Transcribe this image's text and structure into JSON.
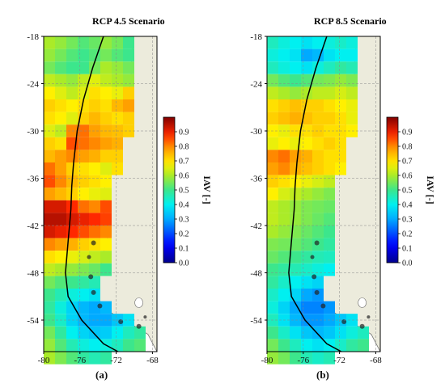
{
  "figure": {
    "panels": [
      {
        "id": "a",
        "title": "RCP 4.5 Scenario",
        "sublabel": "(a)",
        "colorbar_label": "IAV [-]",
        "grid": {
          "lon_start": -80,
          "lon_step": 1.25,
          "lat_start": -18,
          "lat_step": -1.6,
          "rows": [
            [
              0.6,
              0.58,
              0.55,
              0.52,
              0.54,
              0.58,
              0.55,
              0.5,
              0.48
            ],
            [
              0.58,
              0.55,
              0.52,
              0.5,
              0.52,
              0.55,
              0.52,
              0.5,
              0.48
            ],
            [
              0.55,
              0.52,
              0.5,
              0.5,
              0.55,
              0.6,
              0.58,
              0.55,
              0.52
            ],
            [
              0.62,
              0.6,
              0.58,
              0.62,
              0.65,
              0.62,
              0.6,
              0.58,
              0.55
            ],
            [
              0.68,
              0.65,
              0.62,
              0.65,
              0.7,
              0.68,
              0.66,
              0.72,
              0.68
            ],
            [
              0.72,
              0.7,
              0.68,
              0.7,
              0.72,
              0.7,
              0.75,
              0.78,
              0.7
            ],
            [
              0.7,
              0.68,
              0.65,
              0.72,
              0.75,
              0.72,
              0.7,
              0.72,
              0.68
            ],
            [
              0.65,
              0.62,
              0.8,
              0.82,
              0.78,
              0.75,
              0.74,
              0.72,
              0.7
            ],
            [
              0.72,
              0.7,
              0.85,
              0.82,
              0.8,
              0.78,
              0.76,
              0.88,
              0.82
            ],
            [
              0.75,
              0.78,
              0.8,
              0.78,
              0.76,
              0.72,
              0.72,
              0.9,
              0.78
            ],
            [
              0.82,
              0.78,
              0.72,
              0.7,
              0.68,
              0.65,
              0.7,
              0.72,
              0.7
            ],
            [
              0.85,
              0.8,
              0.75,
              0.72,
              0.7,
              0.68,
              0.68,
              0.68,
              0.66
            ],
            [
              0.78,
              0.75,
              0.72,
              0.68,
              0.66,
              0.65,
              0.7,
              0.68,
              0.66
            ],
            [
              0.92,
              0.92,
              0.88,
              0.82,
              0.8,
              0.85,
              0.78,
              0.72,
              0.7
            ],
            [
              0.95,
              0.95,
              0.92,
              0.9,
              0.88,
              0.86,
              0.84,
              0.8,
              0.75
            ],
            [
              0.92,
              0.9,
              0.88,
              0.85,
              0.82,
              0.8,
              0.76,
              0.74,
              0.72
            ],
            [
              0.8,
              0.78,
              0.76,
              0.72,
              0.7,
              0.68,
              0.66,
              0.64,
              0.62
            ],
            [
              0.7,
              0.68,
              0.66,
              0.64,
              0.62,
              0.6,
              0.58,
              0.56,
              0.55
            ],
            [
              0.62,
              0.6,
              0.58,
              0.56,
              0.54,
              0.5,
              0.48,
              0.46,
              0.45
            ],
            [
              0.55,
              0.52,
              0.5,
              0.48,
              0.46,
              0.44,
              0.42,
              0.4,
              0.4
            ],
            [
              0.5,
              0.46,
              0.42,
              0.4,
              0.38,
              0.36,
              0.35,
              0.36,
              0.38
            ],
            [
              0.48,
              0.42,
              0.36,
              0.32,
              0.3,
              0.32,
              0.34,
              0.38,
              0.4
            ],
            [
              0.5,
              0.44,
              0.36,
              0.32,
              0.3,
              0.3,
              0.34,
              0.38,
              0.42
            ],
            [
              0.55,
              0.48,
              0.4,
              0.36,
              0.34,
              0.35,
              0.4,
              0.45,
              0.48
            ],
            [
              0.58,
              0.52,
              0.46,
              0.42,
              0.4,
              0.42,
              0.45,
              0.5,
              0.52
            ],
            [
              0.6,
              0.56,
              0.52,
              0.48,
              0.46,
              0.48,
              0.5,
              0.52,
              0.55
            ]
          ]
        }
      },
      {
        "id": "b",
        "title": "RCP 8.5 Scenario",
        "sublabel": "(b)",
        "colorbar_label": "IAV [-]",
        "grid": {
          "lon_start": -80,
          "lon_step": 1.25,
          "lat_start": -18,
          "lat_step": -1.6,
          "rows": [
            [
              0.45,
              0.42,
              0.4,
              0.38,
              0.4,
              0.42,
              0.44,
              0.42,
              0.4
            ],
            [
              0.42,
              0.4,
              0.38,
              0.3,
              0.32,
              0.38,
              0.4,
              0.4,
              0.4
            ],
            [
              0.45,
              0.42,
              0.4,
              0.38,
              0.42,
              0.45,
              0.48,
              0.46,
              0.44
            ],
            [
              0.55,
              0.52,
              0.5,
              0.52,
              0.55,
              0.56,
              0.58,
              0.56,
              0.54
            ],
            [
              0.62,
              0.6,
              0.58,
              0.6,
              0.62,
              0.62,
              0.64,
              0.62,
              0.6
            ],
            [
              0.7,
              0.72,
              0.74,
              0.72,
              0.72,
              0.7,
              0.68,
              0.66,
              0.64
            ],
            [
              0.72,
              0.74,
              0.76,
              0.74,
              0.72,
              0.72,
              0.7,
              0.66,
              0.64
            ],
            [
              0.68,
              0.66,
              0.7,
              0.7,
              0.72,
              0.7,
              0.7,
              0.68,
              0.66
            ],
            [
              0.66,
              0.68,
              0.66,
              0.68,
              0.7,
              0.72,
              0.7,
              0.7,
              0.68
            ],
            [
              0.8,
              0.82,
              0.78,
              0.76,
              0.72,
              0.7,
              0.7,
              0.72,
              0.7
            ],
            [
              0.78,
              0.8,
              0.76,
              0.74,
              0.72,
              0.7,
              0.68,
              0.66,
              0.64
            ],
            [
              0.72,
              0.7,
              0.68,
              0.66,
              0.64,
              0.62,
              0.62,
              0.6,
              0.58
            ],
            [
              0.68,
              0.64,
              0.62,
              0.6,
              0.58,
              0.56,
              0.55,
              0.55,
              0.54
            ],
            [
              0.62,
              0.6,
              0.58,
              0.56,
              0.55,
              0.54,
              0.52,
              0.5,
              0.5
            ],
            [
              0.62,
              0.6,
              0.58,
              0.56,
              0.54,
              0.52,
              0.5,
              0.5,
              0.48
            ],
            [
              0.6,
              0.58,
              0.56,
              0.54,
              0.52,
              0.5,
              0.5,
              0.48,
              0.48
            ],
            [
              0.56,
              0.55,
              0.54,
              0.52,
              0.5,
              0.48,
              0.48,
              0.46,
              0.46
            ],
            [
              0.54,
              0.52,
              0.5,
              0.48,
              0.46,
              0.45,
              0.44,
              0.44,
              0.44
            ],
            [
              0.5,
              0.48,
              0.46,
              0.44,
              0.42,
              0.4,
              0.4,
              0.4,
              0.4
            ],
            [
              0.48,
              0.44,
              0.4,
              0.38,
              0.36,
              0.34,
              0.34,
              0.36,
              0.38
            ],
            [
              0.44,
              0.4,
              0.36,
              0.3,
              0.28,
              0.3,
              0.32,
              0.34,
              0.36
            ],
            [
              0.42,
              0.36,
              0.3,
              0.26,
              0.26,
              0.28,
              0.3,
              0.34,
              0.36
            ],
            [
              0.45,
              0.38,
              0.32,
              0.28,
              0.28,
              0.3,
              0.34,
              0.38,
              0.4
            ],
            [
              0.5,
              0.44,
              0.38,
              0.34,
              0.32,
              0.34,
              0.38,
              0.42,
              0.45
            ],
            [
              0.55,
              0.5,
              0.45,
              0.4,
              0.38,
              0.4,
              0.44,
              0.48,
              0.5
            ],
            [
              0.58,
              0.55,
              0.5,
              0.46,
              0.44,
              0.46,
              0.48,
              0.5,
              0.52
            ]
          ]
        }
      }
    ],
    "y_ticks": [
      "-18",
      "-24",
      "-30",
      "-36",
      "-42",
      "-48",
      "-54"
    ],
    "x_ticks": [
      "-80",
      "-76",
      "-72",
      "-68"
    ],
    "colorbar_ticks": [
      "0.9",
      "0.8",
      "0.7",
      "0.6",
      "0.5",
      "0.4",
      "0.3",
      "0.2",
      "0.1",
      "0.0"
    ],
    "colors": {
      "land": "#ecebdc",
      "coast": "#6f6f6f",
      "track": "#000000",
      "background": "#ffffff"
    }
  }
}
